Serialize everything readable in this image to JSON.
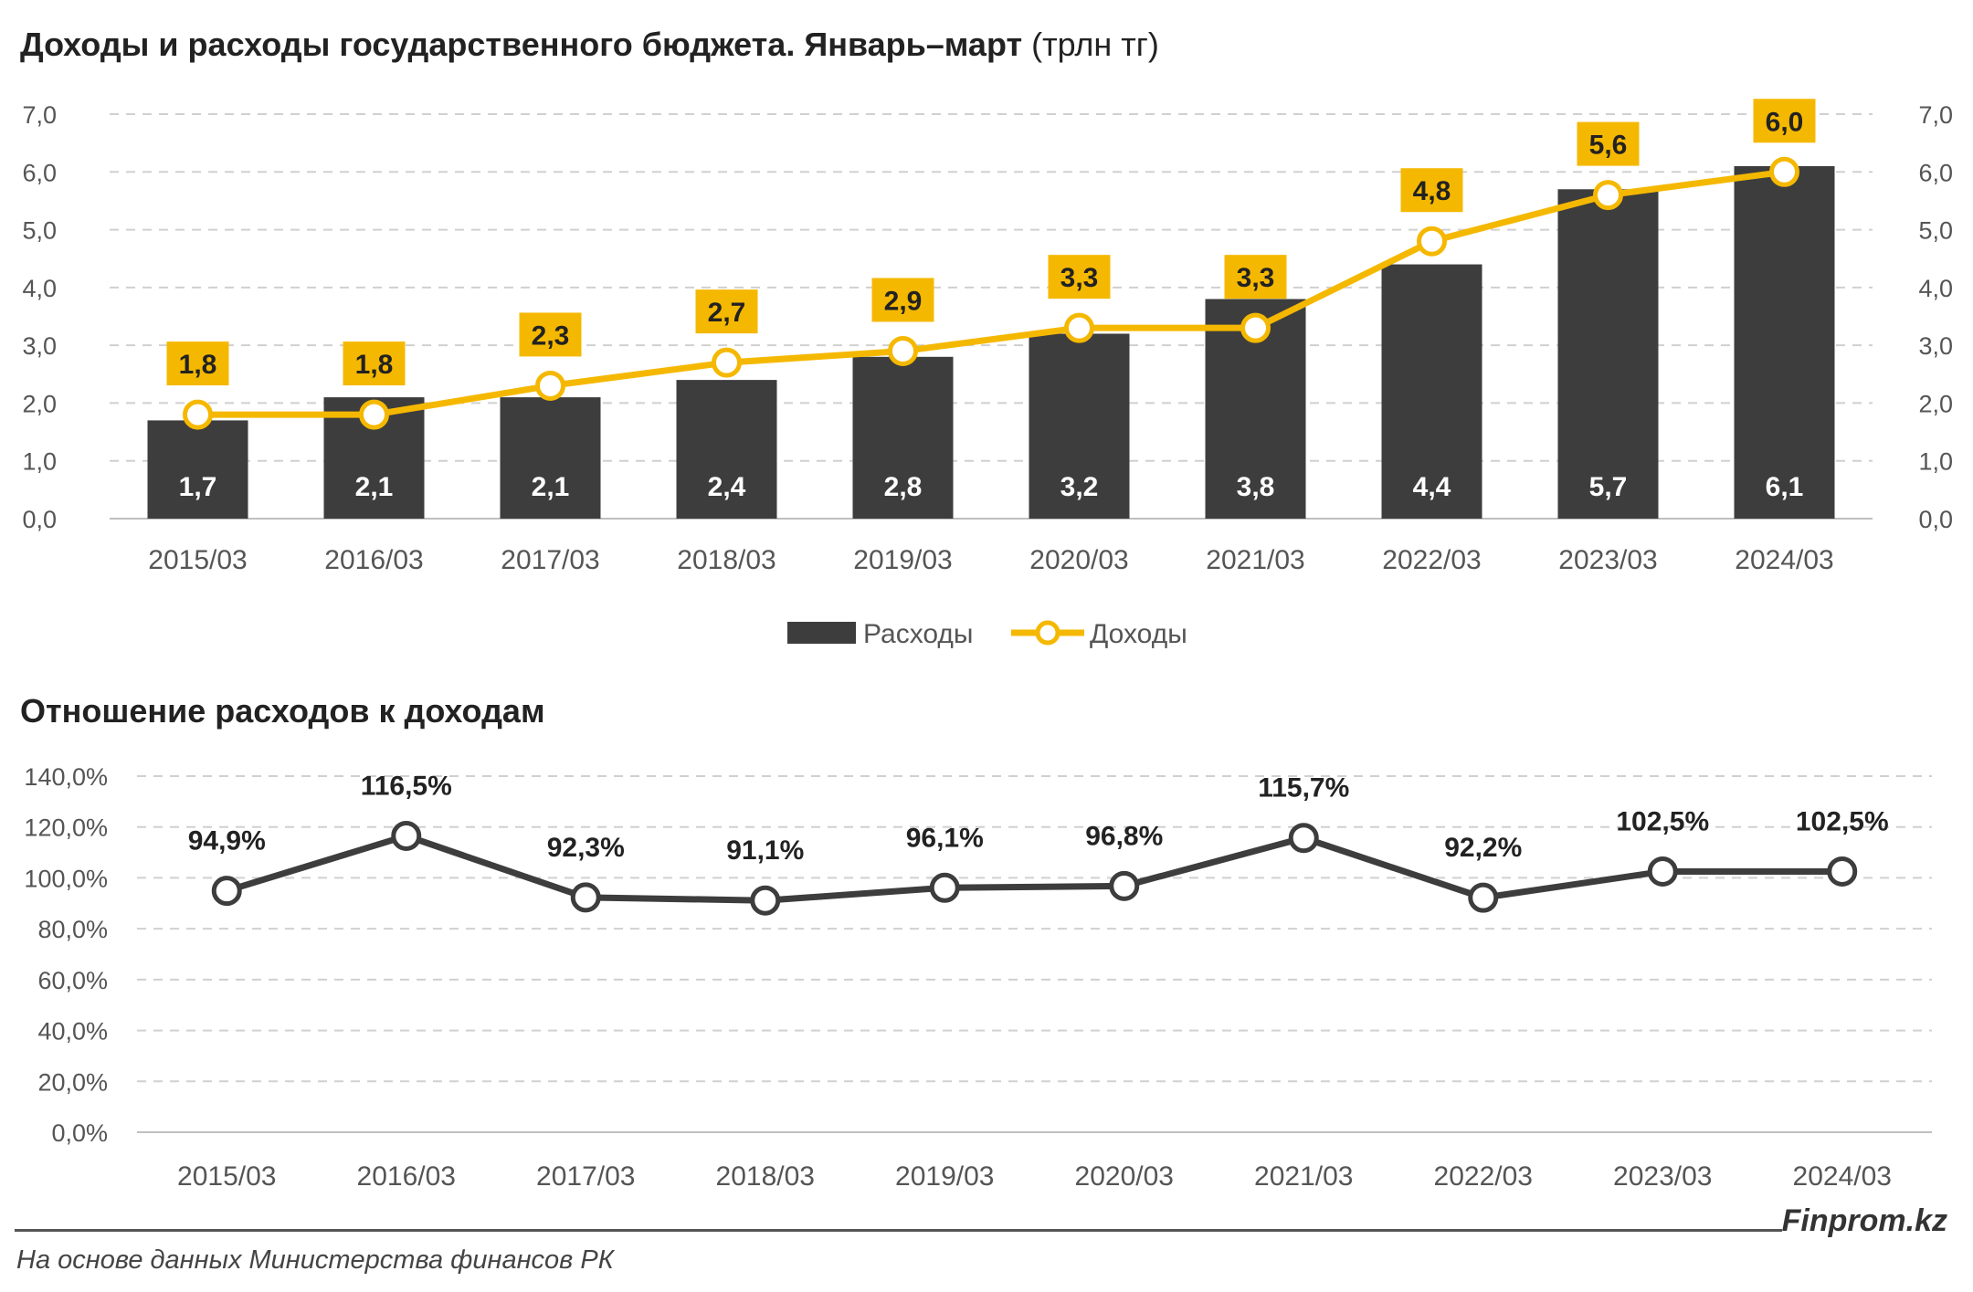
{
  "chart_data": [
    {
      "type": "bar",
      "title": "Доходы и расходы государственного бюджета. Январь–март",
      "unit": "(трлн тг)",
      "categories": [
        "2015/03",
        "2016/03",
        "2017/03",
        "2018/03",
        "2019/03",
        "2020/03",
        "2021/03",
        "2022/03",
        "2023/03",
        "2024/03"
      ],
      "series": [
        {
          "name": "Расходы",
          "type": "bar",
          "color": "#3d3d3d",
          "values": [
            1.7,
            2.1,
            2.1,
            2.4,
            2.8,
            3.2,
            3.8,
            4.4,
            5.7,
            6.1
          ]
        },
        {
          "name": "Доходы",
          "type": "line",
          "color": "#f5b800",
          "values": [
            1.8,
            1.8,
            2.3,
            2.7,
            2.9,
            3.3,
            3.3,
            4.8,
            5.6,
            6.0
          ]
        }
      ],
      "bar_labels": [
        "1,7",
        "2,1",
        "2,1",
        "2,4",
        "2,8",
        "3,2",
        "3,8",
        "4,4",
        "5,7",
        "6,1"
      ],
      "line_labels": [
        "1,8",
        "1,8",
        "2,3",
        "2,7",
        "2,9",
        "3,3",
        "3,3",
        "4,8",
        "5,6",
        "6,0"
      ],
      "ylim": [
        0,
        7
      ],
      "yticks": [
        "0,0",
        "1,0",
        "2,0",
        "3,0",
        "4,0",
        "5,0",
        "6,0",
        "7,0"
      ],
      "grid": true,
      "legend": "bottom"
    },
    {
      "type": "line",
      "title": "Отношение расходов к доходам",
      "categories": [
        "2015/03",
        "2016/03",
        "2017/03",
        "2018/03",
        "2019/03",
        "2020/03",
        "2021/03",
        "2022/03",
        "2023/03",
        "2024/03"
      ],
      "series": [
        {
          "color": "#3d3d3d",
          "values": [
            94.9,
            116.5,
            92.3,
            91.1,
            96.1,
            96.8,
            115.7,
            92.2,
            102.5,
            102.5
          ]
        }
      ],
      "labels": [
        "94,9%",
        "116,5%",
        "92,3%",
        "91,1%",
        "96,1%",
        "96,8%",
        "115,7%",
        "92,2%",
        "102,5%",
        "102,5%"
      ],
      "ylim": [
        0,
        140
      ],
      "yticks": [
        "0,0%",
        "20,0%",
        "40,0%",
        "60,0%",
        "80,0%",
        "100,0%",
        "120,0%",
        "140,0%"
      ],
      "grid": true
    }
  ],
  "footer": {
    "brand": "Finprom.kz",
    "source": "На основе данных Министерства финансов РК"
  }
}
